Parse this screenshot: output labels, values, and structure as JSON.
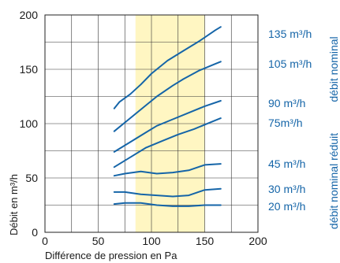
{
  "chart_data": {
    "type": "line",
    "xlabel": "Différence de pression en Pa",
    "ylabel": "Débit en m³/h",
    "xlim": [
      0,
      200
    ],
    "ylim": [
      0,
      200
    ],
    "x_ticks": [
      0,
      50,
      100,
      150,
      200
    ],
    "y_ticks": [
      0,
      50,
      100,
      150,
      200
    ],
    "grid": true,
    "highlight_band": {
      "x": [
        85,
        150
      ],
      "color": "#fff6c2"
    },
    "line_color": "#1565a8",
    "series": [
      {
        "name": "135 m³/h",
        "x": [
          65,
          70,
          80,
          90,
          100,
          115,
          130,
          145,
          160,
          165
        ],
        "y": [
          114,
          120,
          127,
          136,
          146,
          158,
          167,
          176,
          186,
          189
        ]
      },
      {
        "name": "105 m³/h",
        "x": [
          65,
          80,
          95,
          105,
          120,
          130,
          145,
          160,
          165
        ],
        "y": [
          93,
          105,
          117,
          125,
          135,
          141,
          149,
          155,
          157
        ]
      },
      {
        "name": "90 m³/h",
        "x": [
          65,
          80,
          95,
          105,
          120,
          135,
          150,
          165
        ],
        "y": [
          74,
          83,
          92,
          98,
          104,
          110,
          116,
          121
        ]
      },
      {
        "name": "75m³/h",
        "x": [
          65,
          80,
          95,
          110,
          125,
          140,
          155,
          165
        ],
        "y": [
          60,
          69,
          78,
          84,
          90,
          95,
          101,
          105
        ]
      },
      {
        "name": "45 m³/h",
        "x": [
          65,
          75,
          90,
          105,
          120,
          135,
          150,
          165
        ],
        "y": [
          52,
          54,
          56,
          54,
          55,
          57,
          62,
          63
        ]
      },
      {
        "name": "30 m³/h",
        "x": [
          65,
          75,
          90,
          105,
          120,
          135,
          150,
          165
        ],
        "y": [
          37,
          37,
          35,
          34,
          33,
          34,
          39,
          40
        ]
      },
      {
        "name": "20 m³/h",
        "x": [
          65,
          75,
          90,
          105,
          120,
          135,
          150,
          165
        ],
        "y": [
          26,
          27,
          27,
          25,
          24,
          24,
          25,
          25
        ]
      }
    ],
    "group_labels": [
      "débit nominal",
      "débit nominal réduit"
    ]
  }
}
